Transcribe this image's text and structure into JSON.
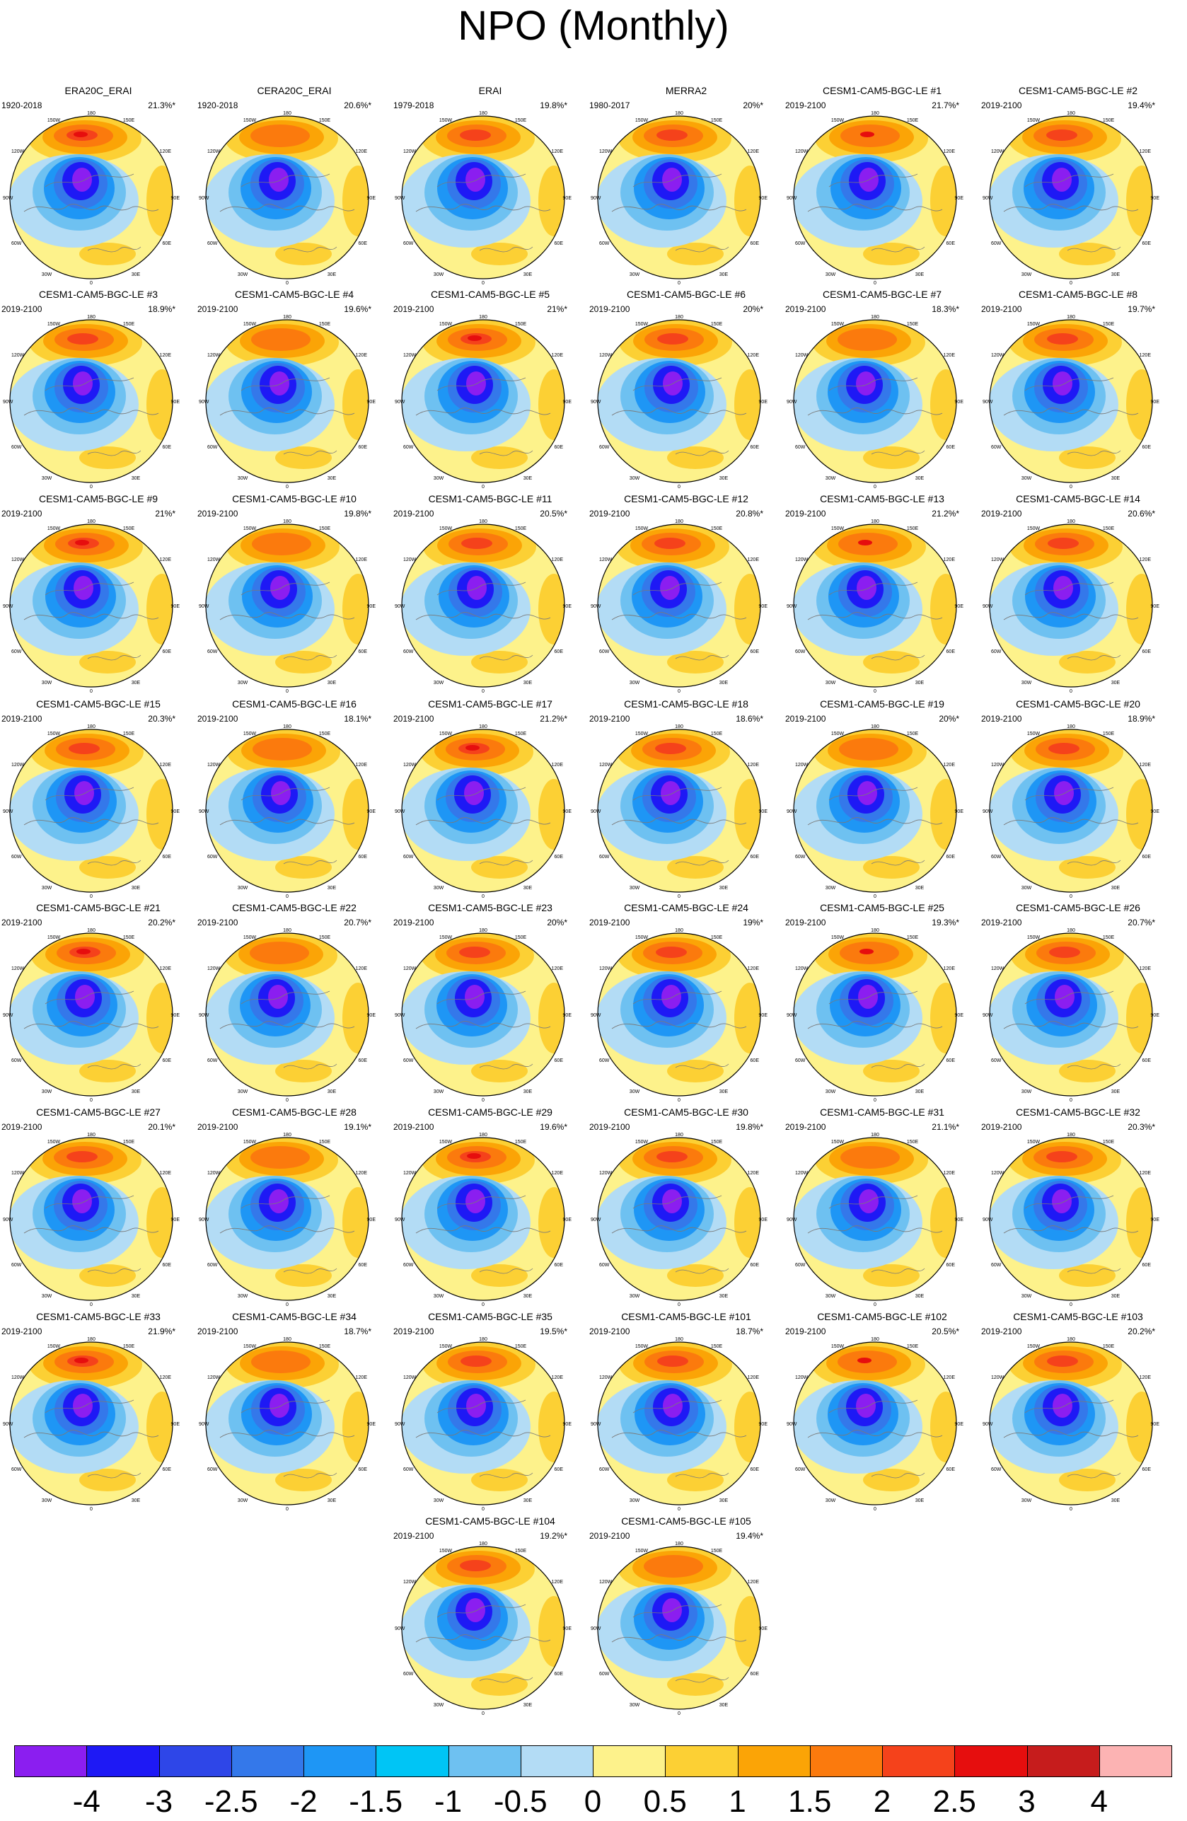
{
  "title": "NPO (Monthly)",
  "panels": [
    {
      "name": "ERA20C_ERAI",
      "period": "1920-2018",
      "variance": "21.3%*"
    },
    {
      "name": "CERA20C_ERAI",
      "period": "1920-2018",
      "variance": "20.6%*"
    },
    {
      "name": "ERAI",
      "period": "1979-2018",
      "variance": "19.8%*"
    },
    {
      "name": "MERRA2",
      "period": "1980-2017",
      "variance": "20%*"
    },
    {
      "name": "CESM1-CAM5-BGC-LE #1",
      "period": "2019-2100",
      "variance": "21.7%*"
    },
    {
      "name": "CESM1-CAM5-BGC-LE #2",
      "period": "2019-2100",
      "variance": "19.4%*"
    },
    {
      "name": "CESM1-CAM5-BGC-LE #3",
      "period": "2019-2100",
      "variance": "18.9%*"
    },
    {
      "name": "CESM1-CAM5-BGC-LE #4",
      "period": "2019-2100",
      "variance": "19.6%*"
    },
    {
      "name": "CESM1-CAM5-BGC-LE #5",
      "period": "2019-2100",
      "variance": "21%*"
    },
    {
      "name": "CESM1-CAM5-BGC-LE #6",
      "period": "2019-2100",
      "variance": "20%*"
    },
    {
      "name": "CESM1-CAM5-BGC-LE #7",
      "period": "2019-2100",
      "variance": "18.3%*"
    },
    {
      "name": "CESM1-CAM5-BGC-LE #8",
      "period": "2019-2100",
      "variance": "19.7%*"
    },
    {
      "name": "CESM1-CAM5-BGC-LE #9",
      "period": "2019-2100",
      "variance": "21%*"
    },
    {
      "name": "CESM1-CAM5-BGC-LE #10",
      "period": "2019-2100",
      "variance": "19.8%*"
    },
    {
      "name": "CESM1-CAM5-BGC-LE #11",
      "period": "2019-2100",
      "variance": "20.5%*"
    },
    {
      "name": "CESM1-CAM5-BGC-LE #12",
      "period": "2019-2100",
      "variance": "20.8%*"
    },
    {
      "name": "CESM1-CAM5-BGC-LE #13",
      "period": "2019-2100",
      "variance": "21.2%*"
    },
    {
      "name": "CESM1-CAM5-BGC-LE #14",
      "period": "2019-2100",
      "variance": "20.6%*"
    },
    {
      "name": "CESM1-CAM5-BGC-LE #15",
      "period": "2019-2100",
      "variance": "20.3%*"
    },
    {
      "name": "CESM1-CAM5-BGC-LE #16",
      "period": "2019-2100",
      "variance": "18.1%*"
    },
    {
      "name": "CESM1-CAM5-BGC-LE #17",
      "period": "2019-2100",
      "variance": "21.2%*"
    },
    {
      "name": "CESM1-CAM5-BGC-LE #18",
      "period": "2019-2100",
      "variance": "18.6%*"
    },
    {
      "name": "CESM1-CAM5-BGC-LE #19",
      "period": "2019-2100",
      "variance": "20%*"
    },
    {
      "name": "CESM1-CAM5-BGC-LE #20",
      "period": "2019-2100",
      "variance": "18.9%*"
    },
    {
      "name": "CESM1-CAM5-BGC-LE #21",
      "period": "2019-2100",
      "variance": "20.2%*"
    },
    {
      "name": "CESM1-CAM5-BGC-LE #22",
      "period": "2019-2100",
      "variance": "20.7%*"
    },
    {
      "name": "CESM1-CAM5-BGC-LE #23",
      "period": "2019-2100",
      "variance": "20%*"
    },
    {
      "name": "CESM1-CAM5-BGC-LE #24",
      "period": "2019-2100",
      "variance": "19%*"
    },
    {
      "name": "CESM1-CAM5-BGC-LE #25",
      "period": "2019-2100",
      "variance": "19.3%*"
    },
    {
      "name": "CESM1-CAM5-BGC-LE #26",
      "period": "2019-2100",
      "variance": "20.7%*"
    },
    {
      "name": "CESM1-CAM5-BGC-LE #27",
      "period": "2019-2100",
      "variance": "20.1%*"
    },
    {
      "name": "CESM1-CAM5-BGC-LE #28",
      "period": "2019-2100",
      "variance": "19.1%*"
    },
    {
      "name": "CESM1-CAM5-BGC-LE #29",
      "period": "2019-2100",
      "variance": "19.6%*"
    },
    {
      "name": "CESM1-CAM5-BGC-LE #30",
      "period": "2019-2100",
      "variance": "19.8%*"
    },
    {
      "name": "CESM1-CAM5-BGC-LE #31",
      "period": "2019-2100",
      "variance": "21.1%*"
    },
    {
      "name": "CESM1-CAM5-BGC-LE #32",
      "period": "2019-2100",
      "variance": "20.3%*"
    },
    {
      "name": "CESM1-CAM5-BGC-LE #33",
      "period": "2019-2100",
      "variance": "21.9%*"
    },
    {
      "name": "CESM1-CAM5-BGC-LE #34",
      "period": "2019-2100",
      "variance": "18.7%*"
    },
    {
      "name": "CESM1-CAM5-BGC-LE #35",
      "period": "2019-2100",
      "variance": "19.5%*"
    },
    {
      "name": "CESM1-CAM5-BGC-LE #101",
      "period": "2019-2100",
      "variance": "18.7%*"
    },
    {
      "name": "CESM1-CAM5-BGC-LE #102",
      "period": "2019-2100",
      "variance": "20.5%*"
    },
    {
      "name": "CESM1-CAM5-BGC-LE #103",
      "period": "2019-2100",
      "variance": "20.2%*"
    },
    {
      "name": "CESM1-CAM5-BGC-LE #104",
      "period": "2019-2100",
      "variance": "19.2%*"
    },
    {
      "name": "CESM1-CAM5-BGC-LE #105",
      "period": "2019-2100",
      "variance": "19.4%*"
    }
  ],
  "map_labels": {
    "top": "180",
    "top_left": "150W",
    "top_right": "150E",
    "upper_left": "120W",
    "upper_right": "120E",
    "left": "90W",
    "right": "90E",
    "lower_left": "60W",
    "lower_right": "60E",
    "bottom_left": "30W",
    "bottom_right": "30E",
    "bottom": "0"
  },
  "colorbar": {
    "colors": [
      "#8b1ef0",
      "#1e19f5",
      "#2e46e8",
      "#3478ea",
      "#1e96f5",
      "#00c5f5",
      "#6ec1f1",
      "#b3dcf5",
      "#fdf28b",
      "#fcd034",
      "#fba406",
      "#fb7a0d",
      "#f5421b",
      "#e60e0e",
      "#c61c1c",
      "#fcb3b3"
    ],
    "labels": [
      "-4",
      "-3",
      "-2.5",
      "-2",
      "-1.5",
      "-1",
      "-0.5",
      "0",
      "0.5",
      "1",
      "1.5",
      "2",
      "2.5",
      "3",
      "4"
    ]
  },
  "field_colors": {
    "ocean_bg": "#fdf28b",
    "pos1": "#fcd034",
    "pos2": "#fba406",
    "pos3": "#fb7a0d",
    "pos4": "#f5421b",
    "pos5": "#e60e0e",
    "neg1": "#b3dcf5",
    "neg2": "#6ec1f1",
    "neg3": "#1e96f5",
    "neg4": "#3478ea",
    "neg5": "#1e19f5",
    "neg6": "#8b1ef0"
  }
}
